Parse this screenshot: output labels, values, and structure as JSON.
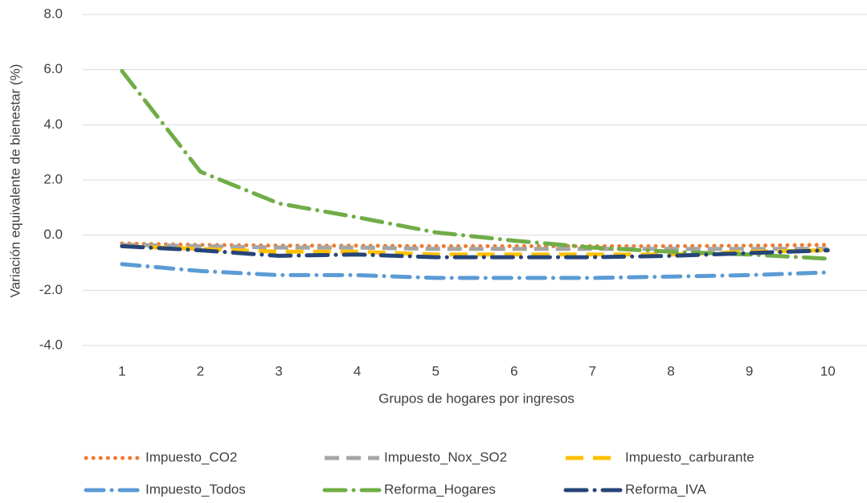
{
  "chart_data": {
    "type": "line",
    "y_label": "Variación equivalente de bienestar (%)",
    "x_label": "Grupos de hogares por ingresos",
    "categories": [
      "1",
      "2",
      "3",
      "4",
      "5",
      "6",
      "7",
      "8",
      "9",
      "10"
    ],
    "series": [
      {
        "name": "Impuesto_CO2",
        "color": "#ed7d31",
        "values": [
          -0.3,
          -0.35,
          -0.38,
          -0.38,
          -0.4,
          -0.4,
          -0.4,
          -0.4,
          -0.38,
          -0.35
        ]
      },
      {
        "name": "Impuesto_Nox_SO2",
        "color": "#a5a5a5",
        "values": [
          -0.35,
          -0.4,
          -0.45,
          -0.45,
          -0.5,
          -0.5,
          -0.5,
          -0.5,
          -0.5,
          -0.5
        ]
      },
      {
        "name": "Impuesto_carburante",
        "color": "#ffc000",
        "values": [
          -0.4,
          -0.5,
          -0.6,
          -0.6,
          -0.7,
          -0.7,
          -0.7,
          -0.7,
          -0.6,
          -0.55
        ]
      },
      {
        "name": "Impuesto_Todos",
        "color": "#5b9bd5",
        "values": [
          -1.05,
          -1.3,
          -1.45,
          -1.45,
          -1.55,
          -1.55,
          -1.55,
          -1.5,
          -1.45,
          -1.35
        ]
      },
      {
        "name": "Reforma_Hogares",
        "color": "#70ad47",
        "values": [
          5.95,
          2.3,
          1.15,
          0.65,
          0.1,
          -0.2,
          -0.45,
          -0.6,
          -0.7,
          -0.85
        ]
      },
      {
        "name": "Reforma_IVA",
        "color": "#264478",
        "values": [
          -0.4,
          -0.55,
          -0.75,
          -0.7,
          -0.8,
          -0.8,
          -0.8,
          -0.75,
          -0.65,
          -0.55
        ]
      }
    ],
    "ylim": [
      -4,
      8
    ],
    "yticks": [
      {
        "value": -4,
        "label": "-4.0"
      },
      {
        "value": -2,
        "label": "-2.0"
      },
      {
        "value": 0,
        "label": "0.0"
      },
      {
        "value": 2,
        "label": "2.0"
      },
      {
        "value": 4,
        "label": "4.0"
      },
      {
        "value": 6,
        "label": "6.0"
      },
      {
        "value": 8,
        "label": "8.0"
      }
    ],
    "grid": true,
    "legend": "bottom"
  }
}
